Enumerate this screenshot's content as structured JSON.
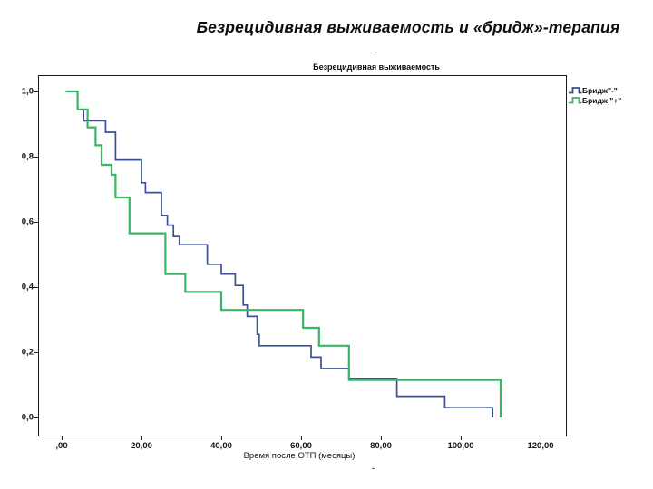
{
  "slide": {
    "title": "Безрецидивная выживаемость и «бридж»-терапия",
    "dash_artifact_top": "-",
    "dash_artifact_bottom": "-"
  },
  "chart": {
    "title": "Безрецидивная выживаемость",
    "x_axis": {
      "label": "Время после ОТП (месяцы)",
      "tick_labels": [
        ",00",
        "20,00",
        "40,00",
        "60,00",
        "80,00",
        "100,00",
        "120,00"
      ],
      "tick_values": [
        0,
        20,
        40,
        60,
        80,
        100,
        120
      ]
    },
    "y_axis": {
      "tick_labels": [
        "1,0",
        "0,8",
        "0,6",
        "0,4",
        "0,2",
        "0,0"
      ],
      "tick_values": [
        1.0,
        0.8,
        0.6,
        0.4,
        0.2,
        0.0
      ]
    }
  },
  "chart_data": {
    "type": "line",
    "subtype": "kaplan-meier-step",
    "title": "Безрецидивная выживаемость",
    "xlabel": "Время после ОТП (месяцы)",
    "ylabel": "",
    "xlim": [
      0,
      130
    ],
    "ylim": [
      0.0,
      1.0
    ],
    "grid": false,
    "legend_position": "outside-top-right",
    "series": [
      {
        "name": "Бридж\"-\"",
        "color": "#3a5295",
        "stroke_width": 1.7,
        "points": [
          [
            1,
            1.0
          ],
          [
            4,
            0.945
          ],
          [
            5.5,
            0.91
          ],
          [
            11,
            0.875
          ],
          [
            13.5,
            0.79
          ],
          [
            20,
            0.72
          ],
          [
            21,
            0.69
          ],
          [
            25,
            0.62
          ],
          [
            26.5,
            0.59
          ],
          [
            28,
            0.555
          ],
          [
            29.5,
            0.53
          ],
          [
            36.5,
            0.47
          ],
          [
            40,
            0.44
          ],
          [
            43.5,
            0.405
          ],
          [
            45.5,
            0.345
          ],
          [
            46.5,
            0.31
          ],
          [
            49,
            0.255
          ],
          [
            49.5,
            0.22
          ],
          [
            62.5,
            0.185
          ],
          [
            65,
            0.15
          ],
          [
            72,
            0.12
          ],
          [
            84,
            0.065
          ],
          [
            96,
            0.03
          ],
          [
            108,
            0.0
          ]
        ]
      },
      {
        "name": "Бридж \"+\"",
        "color": "#3cb465",
        "stroke_width": 2.2,
        "points": [
          [
            1,
            1.0
          ],
          [
            4,
            0.945
          ],
          [
            6.5,
            0.89
          ],
          [
            8.5,
            0.835
          ],
          [
            10,
            0.775
          ],
          [
            12.5,
            0.745
          ],
          [
            13.5,
            0.675
          ],
          [
            17,
            0.565
          ],
          [
            26,
            0.44
          ],
          [
            31,
            0.385
          ],
          [
            40,
            0.33
          ],
          [
            60.5,
            0.275
          ],
          [
            64.5,
            0.22
          ],
          [
            72,
            0.115
          ],
          [
            110,
            0.0
          ]
        ]
      }
    ]
  }
}
